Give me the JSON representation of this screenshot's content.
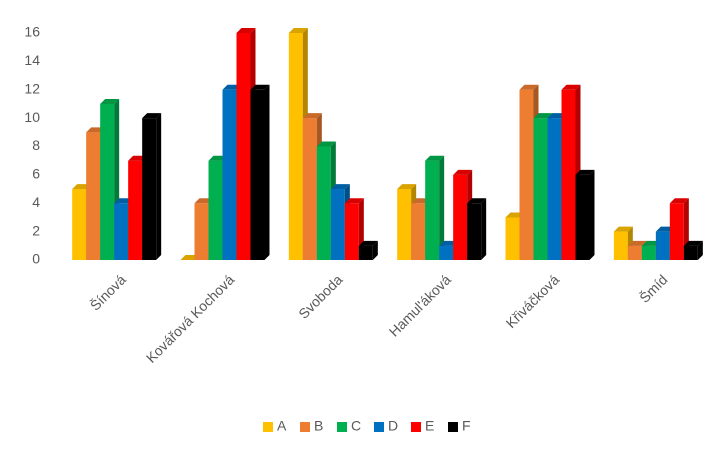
{
  "chart_data": {
    "type": "bar3d",
    "categories": [
      "Šínová",
      "Kovářová Kochová",
      "Svoboda",
      "Hamul'áková",
      "Křiváčková",
      "Šmíd"
    ],
    "series": [
      {
        "name": "A",
        "color": "#FFC000",
        "values": [
          5,
          0,
          16,
          5,
          3,
          2
        ]
      },
      {
        "name": "B",
        "color": "#ED7D31",
        "values": [
          9,
          4,
          10,
          4,
          12,
          1
        ]
      },
      {
        "name": "C",
        "color": "#00B050",
        "values": [
          11,
          7,
          8,
          7,
          10,
          1
        ]
      },
      {
        "name": "D",
        "color": "#0070C0",
        "values": [
          4,
          12,
          5,
          1,
          10,
          2
        ]
      },
      {
        "name": "E",
        "color": "#FF0000",
        "values": [
          7,
          16,
          4,
          6,
          12,
          4
        ]
      },
      {
        "name": "F",
        "color": "#000000",
        "values": [
          10,
          12,
          1,
          4,
          6,
          1
        ]
      }
    ],
    "ylim": [
      0,
      16
    ],
    "yticks": [
      0,
      2,
      4,
      6,
      8,
      10,
      12,
      14,
      16
    ],
    "legend": "bottom"
  }
}
